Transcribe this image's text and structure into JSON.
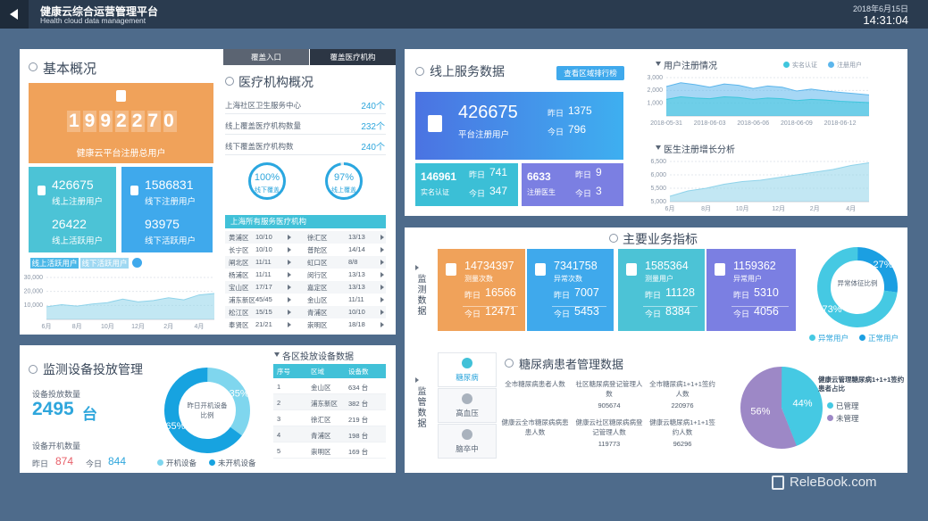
{
  "header": {
    "title": "健康云综合运营管理平台",
    "subtitle": "Health cloud data management",
    "date": "2018年6月15日",
    "time": "14:31:04"
  },
  "overview": {
    "title": "基本概况",
    "total": "1992270",
    "total_label": "健康云平台注册总用户",
    "tiles": [
      {
        "value": "426675",
        "label": "线上注册用户",
        "value2": "26422",
        "label2": "线上活跃用户"
      },
      {
        "value": "1586831",
        "label": "线下注册用户",
        "value2": "93975",
        "label2": "线下活跃用户"
      }
    ],
    "tabs": [
      "线上活跃用户",
      "线下活跃用户"
    ],
    "chart": {
      "type": "area",
      "color": "#8fd3ea",
      "categories": [
        "6月",
        null,
        "8月",
        null,
        "10月",
        null,
        "12月",
        null,
        "2月",
        null,
        "4月",
        null
      ],
      "values": [
        9000,
        10500,
        9500,
        11000,
        12000,
        14500,
        12500,
        13500,
        15500,
        14000,
        17500,
        18500
      ],
      "ylim": [
        0,
        30000
      ],
      "yticks": [
        {
          "value": 10000,
          "label": "10,000"
        },
        {
          "value": 20000,
          "label": "20,000"
        },
        {
          "value": 30000,
          "label": "30,000"
        }
      ]
    }
  },
  "medical": {
    "tabs": [
      "覆盖入口",
      "覆盖医疗机构"
    ],
    "title": "医疗机构概况",
    "rows": [
      [
        "上海社区卫生服务中心",
        "240个"
      ],
      [
        "线上覆盖医疗机构数量",
        "232个"
      ],
      [
        "线下覆盖医疗机构数",
        "240个"
      ]
    ],
    "donuts": [
      {
        "values": [
          100
        ],
        "value_labels": [
          "100%"
        ],
        "label": "线下覆盖"
      },
      {
        "values": [
          97
        ],
        "value_labels": [
          "97%"
        ],
        "label": "线上覆盖"
      }
    ],
    "table_title": "上海所有服务医疗机构",
    "table": [
      [
        "黄浦区",
        "10/10",
        "徐汇区",
        "13/13"
      ],
      [
        "长宁区",
        "10/10",
        "普陀区",
        "14/14"
      ],
      [
        "闸北区",
        "11/11",
        "虹口区",
        "8/8"
      ],
      [
        "杨浦区",
        "11/11",
        "闵行区",
        "13/13"
      ],
      [
        "宝山区",
        "17/17",
        "嘉定区",
        "13/13"
      ],
      [
        "浦东新区",
        "45/45",
        "金山区",
        "11/11"
      ],
      [
        "松江区",
        "15/15",
        "青浦区",
        "10/10"
      ],
      [
        "奉贤区",
        "21/21",
        "崇明区",
        "18/18"
      ]
    ]
  },
  "online": {
    "title": "线上服务数据",
    "button": "查看区域排行榜",
    "main": {
      "value": "426675",
      "label": "平台注册用户",
      "yesterday_label": "昨日",
      "yesterday": "1375",
      "today_label": "今日",
      "today": "796"
    },
    "subs": [
      {
        "value": "146961",
        "label": "实名认证",
        "yesterday_label": "昨日",
        "yesterday": "741",
        "today_label": "今日",
        "today": "347"
      },
      {
        "value": "6633",
        "label": "注册医生",
        "yesterday_label": "昨日",
        "yesterday": "9",
        "today_label": "今日",
        "today": "3"
      }
    ],
    "reg_chart": {
      "type": "area",
      "title": "用户注册情况",
      "categories": [
        "2018-05-31",
        null,
        null,
        "2018-06-03",
        null,
        null,
        "2018-06-06",
        null,
        null,
        "2018-06-09",
        null,
        null,
        "2018-06-12",
        null,
        null
      ],
      "series": [
        {
          "name": "实名认证",
          "color": "#3fc6dd",
          "values": [
            1300,
            1500,
            1400,
            1350,
            1500,
            1450,
            1300,
            1400,
            1350,
            1200,
            1300,
            1250,
            1150,
            1100,
            1050
          ]
        },
        {
          "name": "注册用户",
          "color": "#5cb6ec",
          "values": [
            2300,
            2600,
            2450,
            2250,
            2500,
            2400,
            2150,
            2350,
            2250,
            1950,
            2100,
            1950,
            1850,
            1750,
            1650
          ]
        }
      ],
      "ylim": [
        0,
        3000
      ],
      "yticks": [
        {
          "value": 1000,
          "label": "1,000"
        },
        {
          "value": 2000,
          "label": "2,000"
        },
        {
          "value": 3000,
          "label": "3,000"
        }
      ]
    },
    "doc_chart": {
      "type": "area",
      "title": "医生注册增长分析",
      "color": "#8fd3ea",
      "categories": [
        "6月",
        null,
        "8月",
        null,
        "10月",
        null,
        "12月",
        null,
        "2月",
        null,
        "4月",
        null
      ],
      "values": [
        5200,
        5400,
        5500,
        5650,
        5750,
        5800,
        5900,
        6000,
        6100,
        6200,
        6350,
        6450
      ],
      "ylim": [
        5000,
        6500
      ],
      "yticks": [
        {
          "value": 5000,
          "label": "5,000"
        },
        {
          "value": 5500,
          "label": "5,500"
        },
        {
          "value": 6000,
          "label": "6,000"
        },
        {
          "value": 6500,
          "label": "6,500"
        }
      ]
    }
  },
  "main": {
    "title": "主要业务指标",
    "side": "监测数据",
    "tiles": [
      {
        "value": "14734397",
        "label": "测量次数",
        "yesterday_label": "昨日",
        "yesterday": "16566",
        "today_label": "今日",
        "today": "12471"
      },
      {
        "value": "7341758",
        "label": "异常次数",
        "yesterday_label": "昨日",
        "yesterday": "7007",
        "today_label": "今日",
        "today": "5453"
      },
      {
        "value": "1585364",
        "label": "测量用户",
        "yesterday_label": "昨日",
        "yesterday": "11128",
        "today_label": "今日",
        "today": "8384"
      },
      {
        "value": "1159362",
        "label": "异常用户",
        "yesterday_label": "昨日",
        "yesterday": "5310",
        "today_label": "今日",
        "today": "4056"
      }
    ],
    "donut": {
      "type": "donut",
      "title": "异常体征比例",
      "names": [
        "正常用户",
        "异常用户"
      ],
      "values": [
        27,
        73
      ],
      "value_labels": [
        "27%",
        "73%"
      ],
      "colors": [
        "#1b9fe2",
        "#45c9e3"
      ]
    }
  },
  "regulate": {
    "side": "监管数据",
    "tabs": [
      "糖尿病",
      "高血压",
      "脑卒中"
    ],
    "title": "糖尿病患者管理数据",
    "stats": [
      {
        "label": "全市糖尿病患者人数"
      },
      {
        "label": "社区糖尿病登记管理人数",
        "value": "905674"
      },
      {
        "label": "全市糖尿病1+1+1签约人数",
        "value": "220976"
      },
      {
        "label": "健康云全市糖尿病病患患人数"
      },
      {
        "label": "健康云社区糖尿病病登记管理人数",
        "value": "119773"
      },
      {
        "label": "健康云糖尿病1+1+1签约人数",
        "value": "96296"
      }
    ],
    "pie": {
      "type": "pie",
      "title": "健康云管理糖尿病1+1+1签约患者占比",
      "names": [
        "已管理",
        "未管理"
      ],
      "values": [
        44,
        56
      ],
      "value_labels": [
        "44%",
        "56%"
      ],
      "colors": [
        "#45c9e3",
        "#9d88c6"
      ]
    }
  },
  "devices": {
    "title": "监测设备投放管理",
    "count_label": "设备投放数量",
    "count": "2495",
    "unit": "台",
    "on_label": "设备开机数量",
    "yesterday_label": "昨日",
    "yesterday": "874",
    "today_label": "今日",
    "today": "844",
    "donut": {
      "type": "donut",
      "title": "昨日开机设备比例",
      "names": [
        "开机设备",
        "未开机设备"
      ],
      "values": [
        35,
        65
      ],
      "value_labels": [
        "35%",
        "65%"
      ],
      "colors": [
        "#7fd6ee",
        "#17a3e0"
      ]
    },
    "table": {
      "title": "各区投放设备数据",
      "headers": [
        "序号",
        "区域",
        "设备数"
      ],
      "rows": [
        [
          "1",
          "金山区",
          "634 台"
        ],
        [
          "2",
          "浦东新区",
          "382 台"
        ],
        [
          "3",
          "徐汇区",
          "219 台"
        ],
        [
          "4",
          "青浦区",
          "198 台"
        ],
        [
          "5",
          "崇明区",
          "169 台"
        ]
      ]
    }
  },
  "watermark": "ReleBook.com"
}
